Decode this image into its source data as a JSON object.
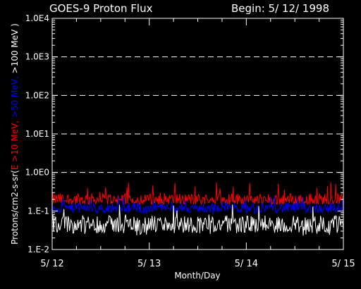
{
  "chart_data": {
    "type": "line",
    "title": "GOES-9 Proton Flux",
    "begin_label": "Begin: 5/ 12/ 1998",
    "xlabel": "Month/Day",
    "ylabel_parts": [
      {
        "text": "Protons/cm2-s-sr(",
        "color": "#ffffff"
      },
      {
        "text": "E >10 MeV, ",
        "color": "#ff0000"
      },
      {
        "text": ">50 MeV, ",
        "color": "#0000ff"
      },
      {
        "text": ">100 MeV )",
        "color": "#ffffff"
      }
    ],
    "y_scale": "log",
    "ylim": [
      0.01,
      10000
    ],
    "y_ticks": [
      {
        "value": 0.01,
        "label": "1.E-2"
      },
      {
        "value": 0.1,
        "label": "1.E-1"
      },
      {
        "value": 1,
        "label": "1.0E0"
      },
      {
        "value": 10,
        "label": "1.0E1"
      },
      {
        "value": 100,
        "label": "1.0E2"
      },
      {
        "value": 1000,
        "label": "1.0E3"
      },
      {
        "value": 10000,
        "label": "1.0E4"
      }
    ],
    "dashed_grid_values": [
      1,
      10,
      100,
      1000
    ],
    "xlim": [
      "1998-05-12",
      "1998-05-15"
    ],
    "x_ticks": [
      {
        "value": "1998-05-12",
        "label": "5/ 12"
      },
      {
        "value": "1998-05-13",
        "label": "5/ 13"
      },
      {
        "value": "1998-05-14",
        "label": "5/ 14"
      },
      {
        "value": "1998-05-15",
        "label": "5/ 15"
      }
    ],
    "series": [
      {
        "name": "E >10 MeV",
        "color": "#ff0000",
        "typical": 0.2,
        "min": 0.15,
        "max": 0.6
      },
      {
        "name": ">50 MeV",
        "color": "#0000ff",
        "typical": 0.12,
        "min": 0.08,
        "max": 0.25
      },
      {
        "name": ">100 MeV",
        "color": "#ffffff",
        "typical": 0.045,
        "min": 0.022,
        "max": 0.15
      }
    ]
  }
}
